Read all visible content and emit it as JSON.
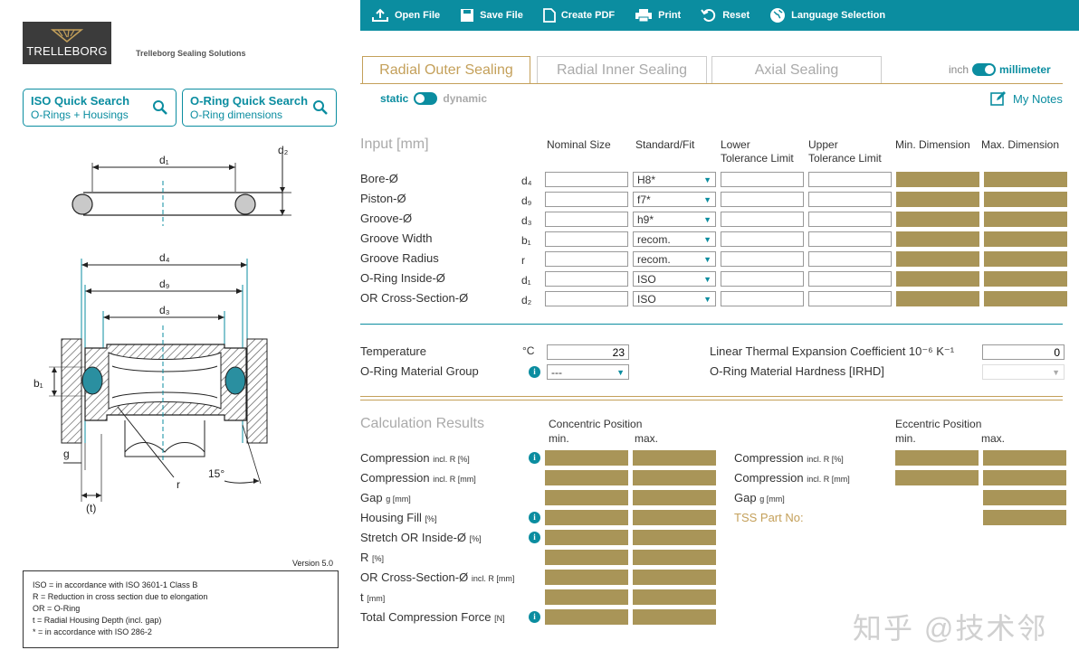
{
  "toolbar": {
    "open": "Open File",
    "save": "Save File",
    "pdf": "Create PDF",
    "print": "Print",
    "reset": "Reset",
    "language": "Language Selection"
  },
  "brand": {
    "logo_text": "TRELLEBORG",
    "company": "Trelleborg Sealing Solutions"
  },
  "quick_search": [
    {
      "title": "ISO Quick Search",
      "subtitle": "O-Rings + Housings"
    },
    {
      "title": "O-Ring Quick Search",
      "subtitle": "O-Ring dimensions"
    }
  ],
  "tabs": [
    "Radial Outer Sealing",
    "Radial Inner Sealing",
    "Axial Sealing"
  ],
  "units": {
    "left": "inch",
    "right": "millimeter"
  },
  "mode": {
    "left": "static",
    "right": "dynamic"
  },
  "notes": "My Notes",
  "diagram": {
    "d1": "d₁",
    "d2": "d₂",
    "d4": "d₄",
    "d9": "d₉",
    "d3": "d₃",
    "b1": "b₁",
    "g": "g",
    "r": "r",
    "t": "(t)",
    "angle": "15°"
  },
  "version": "Version 5.0",
  "legend": [
    "ISO = in accordance with ISO 3601-1 Class B",
    "R = Reduction in cross section due to elongation",
    "OR = O-Ring",
    "t = Radial Housing Depth (incl. gap)",
    "* = in accordance with ISO 286-2"
  ],
  "input": {
    "title": "Input [mm]",
    "headers": {
      "nominal": "Nominal Size",
      "standard": "Standard/Fit",
      "lower": [
        "Lower",
        "Tolerance Limit"
      ],
      "upper": [
        "Upper",
        "Tolerance Limit"
      ],
      "min": "Min. Dimension",
      "max": "Max. Dimension"
    },
    "rows": [
      {
        "label": "Bore-Ø",
        "sym": "d₄",
        "fit": "H8*"
      },
      {
        "label": "Piston-Ø",
        "sym": "d₉",
        "fit": "f7*"
      },
      {
        "label": "Groove-Ø",
        "sym": "d₃",
        "fit": "h9*"
      },
      {
        "label": "Groove Width",
        "sym": "b₁",
        "fit": "recom."
      },
      {
        "label": "Groove Radius",
        "sym": "r",
        "fit": "recom."
      },
      {
        "label": "O-Ring Inside-Ø",
        "sym": "d₁",
        "fit": "ISO"
      },
      {
        "label": "OR Cross-Section-Ø",
        "sym": "d₂",
        "fit": "ISO"
      }
    ]
  },
  "material": {
    "temp_label": "Temperature",
    "temp_unit": "°C",
    "temp_value": "23",
    "group_label": "O-Ring Material Group",
    "group_value": "---",
    "coef_label": "Linear Thermal Expansion Coefficient 10⁻⁶ K⁻¹",
    "coef_value": "0",
    "hardness_label": "O-Ring Material Hardness [IRHD]"
  },
  "results": {
    "title": "Calculation Results",
    "concentric": "Concentric Position",
    "eccentric": "Eccentric Position",
    "min": "min.",
    "max": "max.",
    "rows": [
      {
        "label": "Compression",
        "unit": "incl. R [%]"
      },
      {
        "label": "Compression",
        "unit": "incl. R [mm]"
      },
      {
        "label": "Gap",
        "unit": "g [mm]"
      },
      {
        "label": "Housing Fill",
        "unit": "[%]"
      },
      {
        "label": "Stretch OR Inside-Ø",
        "unit": "[%]"
      },
      {
        "label": "R",
        "unit": "[%]"
      },
      {
        "label": "OR Cross-Section-Ø",
        "unit": "incl. R [mm]"
      },
      {
        "label": "t",
        "unit": "[mm]"
      },
      {
        "label": "Total Compression Force",
        "unit": "[N]"
      }
    ],
    "ecc_rows": [
      {
        "label": "Compression",
        "unit": "incl. R [%]"
      },
      {
        "label": "Compression",
        "unit": "incl. R [mm]"
      },
      {
        "label": "Gap",
        "unit": "g [mm]"
      }
    ],
    "part_no": "TSS Part No:"
  },
  "watermark": "知乎 @技术邻",
  "colors": {
    "accent": "#0b8da0",
    "gold": "#c4a05a",
    "result_fill": "#a99558"
  }
}
